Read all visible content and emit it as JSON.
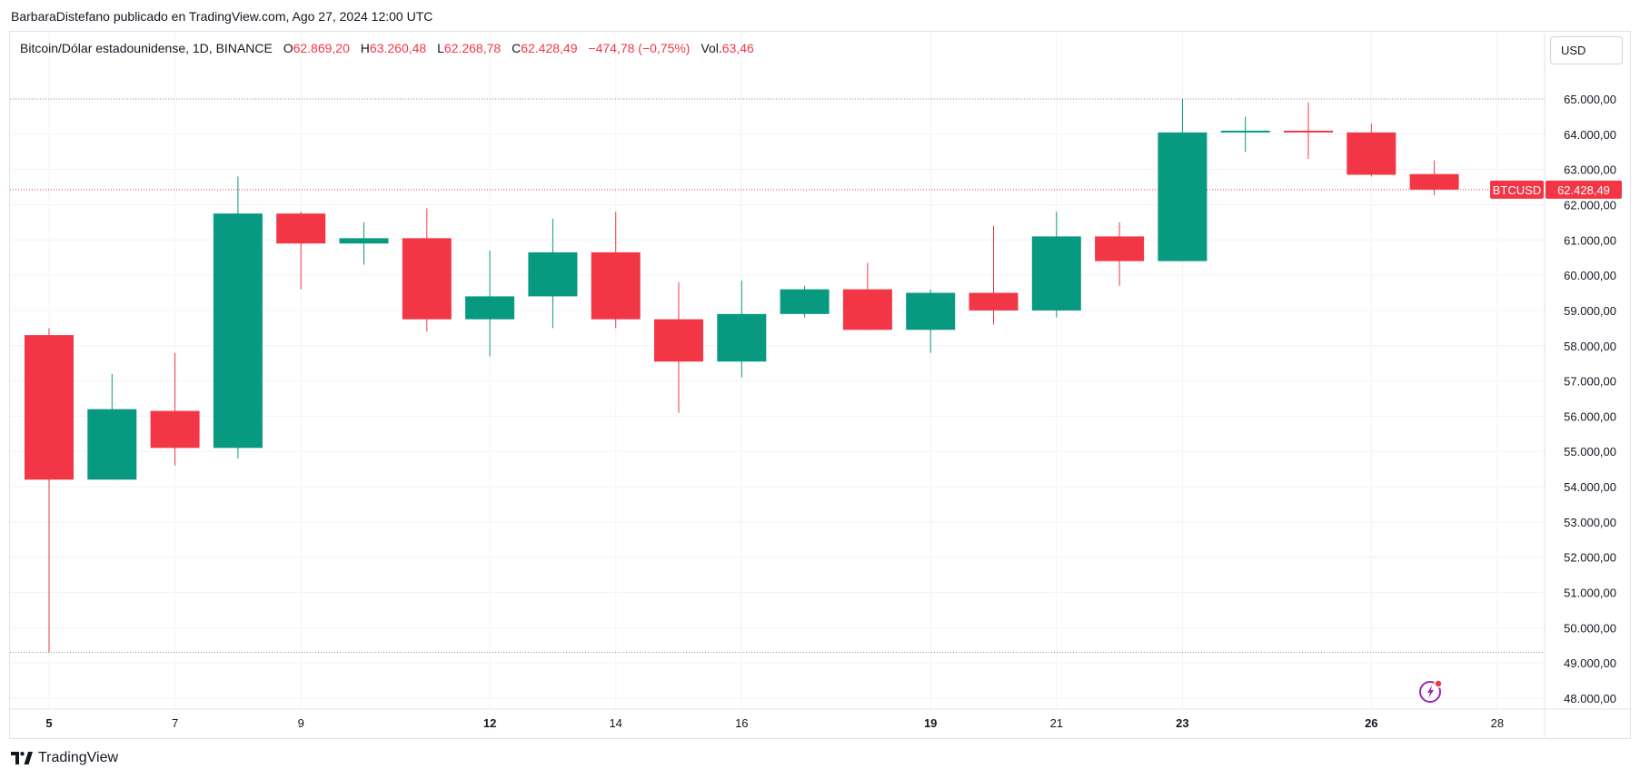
{
  "header": {
    "publish_line": "BarbaraDistefano publicado en TradingView.com, Ago 27, 2024 12:00 UTC"
  },
  "legend": {
    "symbol": "Bitcoin/Dólar estadounidense, 1D, BINANCE",
    "open_label": "O",
    "open_value": "62.869,20",
    "high_label": "H",
    "high_value": "63.260,48",
    "low_label": "L",
    "low_value": "62.268,78",
    "close_label": "C",
    "close_value": "62.428,49",
    "change_value": "−474,78 (−0,75%)",
    "vol_label": "Vol.",
    "vol_value": "63,46"
  },
  "currency_selector": {
    "value": "USD"
  },
  "footer": {
    "brand": "TradingView"
  },
  "colors": {
    "up": "#089981",
    "down": "#f23645",
    "grid": "#f0f3fa",
    "text": "#131722"
  },
  "chart_data": {
    "type": "candlestick",
    "symbol_tag": "BTCUSD",
    "last_price_label": "62.428,49",
    "last_price": 62428.49,
    "ylim": [
      47700,
      65700
    ],
    "y_ticks": [
      {
        "value": 65000,
        "label": "65.000,00"
      },
      {
        "value": 64000,
        "label": "64.000,00"
      },
      {
        "value": 63000,
        "label": "63.000,00"
      },
      {
        "value": 62000,
        "label": "62.000,00"
      },
      {
        "value": 61000,
        "label": "61.000,00"
      },
      {
        "value": 60000,
        "label": "60.000,00"
      },
      {
        "value": 59000,
        "label": "59.000,00"
      },
      {
        "value": 58000,
        "label": "58.000,00"
      },
      {
        "value": 57000,
        "label": "57.000,00"
      },
      {
        "value": 56000,
        "label": "56.000,00"
      },
      {
        "value": 55000,
        "label": "55.000,00"
      },
      {
        "value": 54000,
        "label": "54.000,00"
      },
      {
        "value": 53000,
        "label": "53.000,00"
      },
      {
        "value": 52000,
        "label": "52.000,00"
      },
      {
        "value": 51000,
        "label": "51.000,00"
      },
      {
        "value": 50000,
        "label": "50.000,00"
      },
      {
        "value": 49000,
        "label": "49.000,00"
      },
      {
        "value": 48000,
        "label": "48.000,00"
      }
    ],
    "x_ticks": [
      {
        "day": 5,
        "label": "5",
        "bold": true
      },
      {
        "day": 7,
        "label": "7",
        "bold": false
      },
      {
        "day": 9,
        "label": "9",
        "bold": false
      },
      {
        "day": 12,
        "label": "12",
        "bold": true
      },
      {
        "day": 14,
        "label": "14",
        "bold": false
      },
      {
        "day": 16,
        "label": "16",
        "bold": false
      },
      {
        "day": 19,
        "label": "19",
        "bold": true
      },
      {
        "day": 21,
        "label": "21",
        "bold": false
      },
      {
        "day": 23,
        "label": "23",
        "bold": true
      },
      {
        "day": 26,
        "label": "26",
        "bold": true
      },
      {
        "day": 28,
        "label": "28",
        "bold": false
      }
    ],
    "high_marker": 65000,
    "low_marker": 49300,
    "candles": [
      {
        "date": "2024-08-05",
        "open": 58300,
        "high": 58500,
        "low": 49300,
        "close": 54200
      },
      {
        "date": "2024-08-06",
        "open": 54200,
        "high": 57200,
        "low": 54200,
        "close": 56200
      },
      {
        "date": "2024-08-07",
        "open": 56150,
        "high": 57800,
        "low": 54600,
        "close": 55100
      },
      {
        "date": "2024-08-08",
        "open": 55100,
        "high": 62800,
        "low": 54800,
        "close": 61750
      },
      {
        "date": "2024-08-09",
        "open": 61750,
        "high": 61800,
        "low": 59600,
        "close": 60900
      },
      {
        "date": "2024-08-10",
        "open": 60900,
        "high": 61500,
        "low": 60300,
        "close": 61050
      },
      {
        "date": "2024-08-11",
        "open": 61050,
        "high": 61900,
        "low": 58400,
        "close": 58750
      },
      {
        "date": "2024-08-12",
        "open": 58750,
        "high": 60700,
        "low": 57700,
        "close": 59400
      },
      {
        "date": "2024-08-13",
        "open": 59400,
        "high": 61600,
        "low": 58500,
        "close": 60650
      },
      {
        "date": "2024-08-14",
        "open": 60650,
        "high": 61800,
        "low": 58500,
        "close": 58750
      },
      {
        "date": "2024-08-15",
        "open": 58750,
        "high": 59800,
        "low": 56100,
        "close": 57550
      },
      {
        "date": "2024-08-16",
        "open": 57550,
        "high": 59850,
        "low": 57100,
        "close": 58900
      },
      {
        "date": "2024-08-17",
        "open": 58900,
        "high": 59700,
        "low": 58800,
        "close": 59600
      },
      {
        "date": "2024-08-18",
        "open": 59600,
        "high": 60350,
        "low": 58450,
        "close": 58450
      },
      {
        "date": "2024-08-19",
        "open": 58450,
        "high": 59600,
        "low": 57800,
        "close": 59500
      },
      {
        "date": "2024-08-20",
        "open": 59500,
        "high": 61400,
        "low": 58600,
        "close": 59000
      },
      {
        "date": "2024-08-21",
        "open": 59000,
        "high": 61800,
        "low": 58800,
        "close": 61100
      },
      {
        "date": "2024-08-22",
        "open": 61100,
        "high": 61500,
        "low": 59700,
        "close": 60400
      },
      {
        "date": "2024-08-23",
        "open": 60400,
        "high": 65000,
        "low": 60400,
        "close": 64050
      },
      {
        "date": "2024-08-24",
        "open": 64050,
        "high": 64500,
        "low": 63500,
        "close": 64100
      },
      {
        "date": "2024-08-25",
        "open": 64100,
        "high": 64900,
        "low": 63300,
        "close": 64050
      },
      {
        "date": "2024-08-26",
        "open": 64050,
        "high": 64300,
        "low": 62800,
        "close": 62850
      },
      {
        "date": "2024-08-27",
        "open": 62869.2,
        "high": 63260.48,
        "low": 62268.78,
        "close": 62428.49
      }
    ]
  }
}
